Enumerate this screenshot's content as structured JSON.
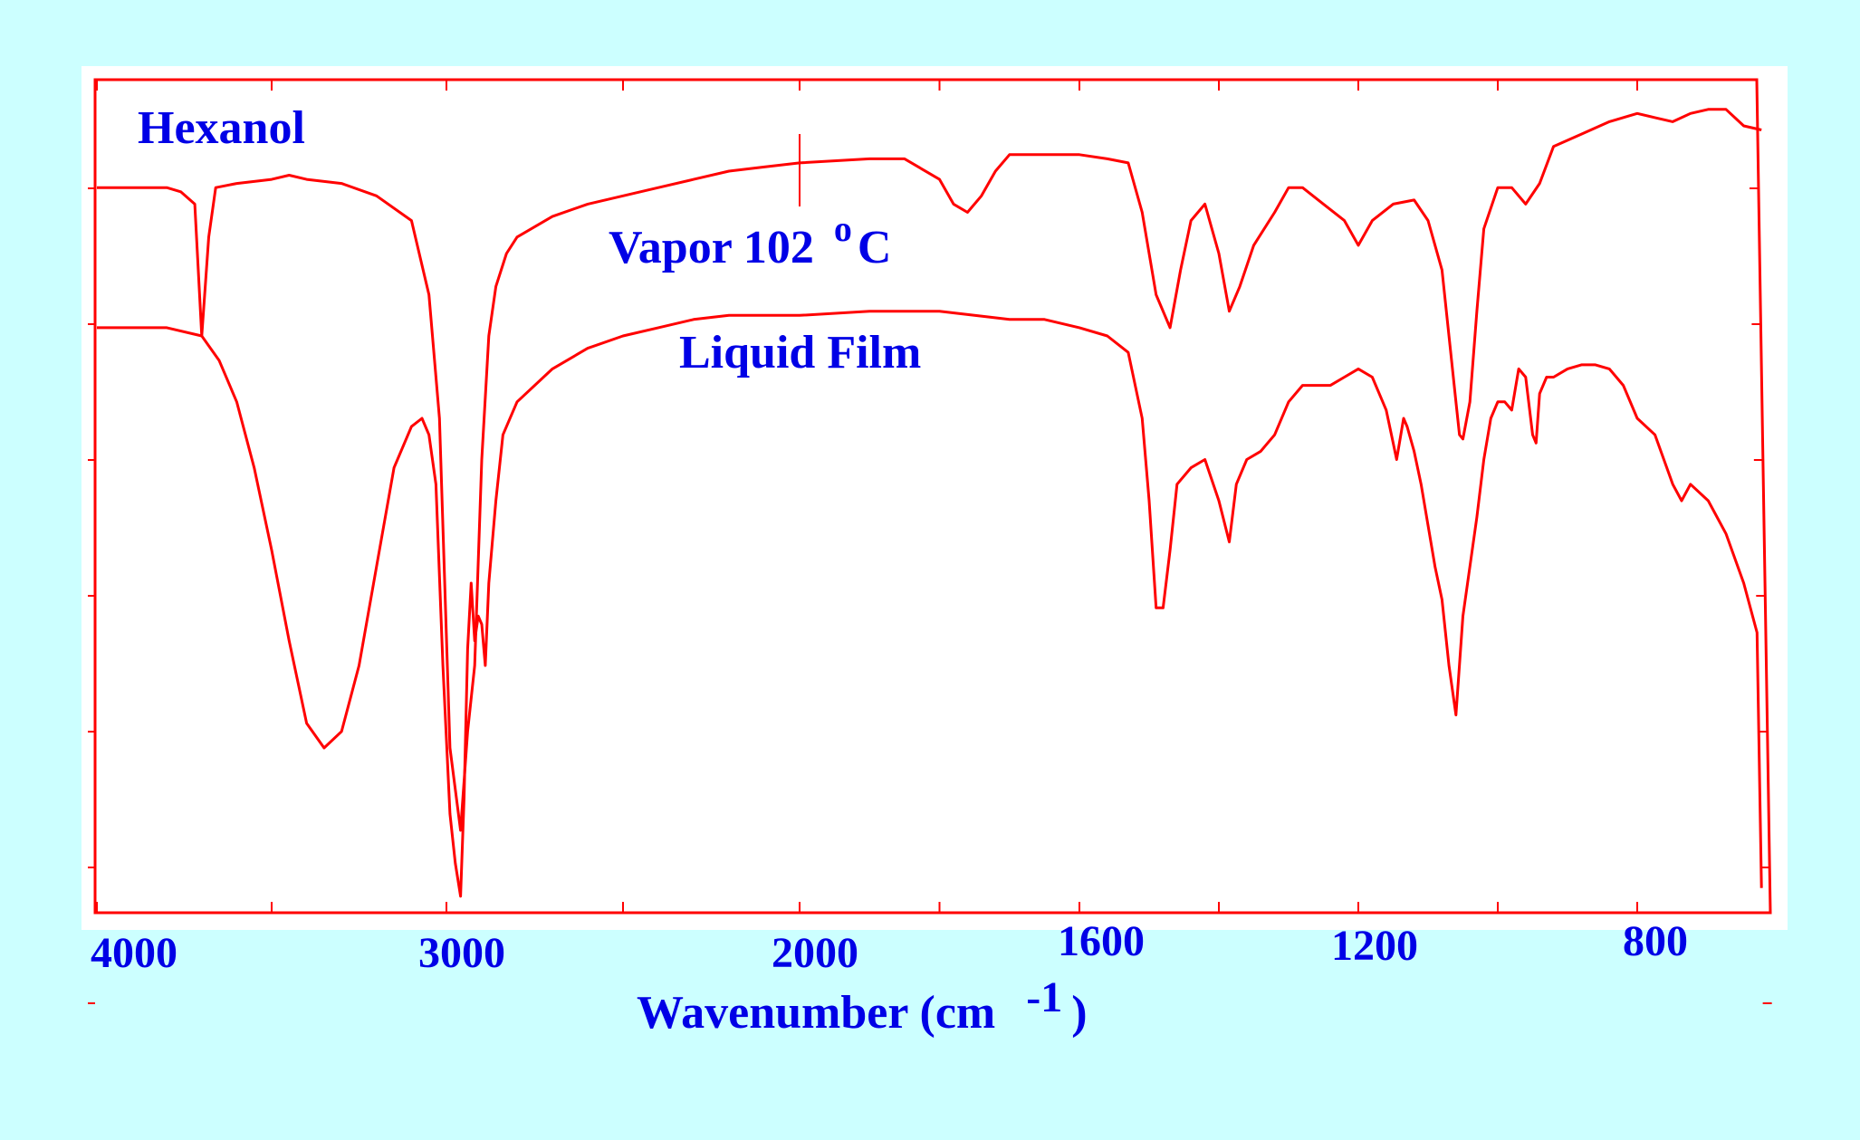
{
  "chart_data": {
    "type": "line",
    "title": "Hexanol",
    "xlabel": "Wavenumber (cm",
    "xlabel_exponent": "-1",
    "xlabel_suffix": ")",
    "xticks": [
      "4000",
      "3000",
      "2000",
      "1600",
      "1200",
      "800"
    ],
    "x_axis_scale": "piecewise: 4000-2000 compressed, 2000-650 expanded",
    "xlim": [
      4000,
      650
    ],
    "ylim": [
      0,
      100
    ],
    "y_meaning": "transmittance (%)",
    "grid": false,
    "legend": "none (inline labels)",
    "colors": {
      "trace": "#ff0000",
      "text": "#0000e6",
      "background": "#ccffff",
      "frame": "#ff0000"
    },
    "series": [
      {
        "name": "Vapor 102",
        "label_degree": "o",
        "label_unit": "C",
        "points": [
          [
            4000,
            88
          ],
          [
            3900,
            88
          ],
          [
            3800,
            88
          ],
          [
            3760,
            87.5
          ],
          [
            3720,
            86
          ],
          [
            3700,
            70
          ],
          [
            3680,
            82
          ],
          [
            3660,
            88
          ],
          [
            3600,
            88.5
          ],
          [
            3500,
            89
          ],
          [
            3450,
            89.5
          ],
          [
            3400,
            89
          ],
          [
            3300,
            88.5
          ],
          [
            3200,
            87
          ],
          [
            3100,
            84
          ],
          [
            3050,
            75
          ],
          [
            3020,
            60
          ],
          [
            2990,
            20
          ],
          [
            2960,
            10
          ],
          [
            2940,
            22
          ],
          [
            2920,
            30
          ],
          [
            2900,
            55
          ],
          [
            2880,
            70
          ],
          [
            2860,
            76
          ],
          [
            2830,
            80
          ],
          [
            2800,
            82
          ],
          [
            2700,
            84.5
          ],
          [
            2600,
            86
          ],
          [
            2500,
            87
          ],
          [
            2400,
            88
          ],
          [
            2300,
            89
          ],
          [
            2200,
            90
          ],
          [
            2100,
            90.5
          ],
          [
            2000,
            91
          ],
          [
            1900,
            91.5
          ],
          [
            1850,
            91.5
          ],
          [
            1800,
            89
          ],
          [
            1780,
            86
          ],
          [
            1760,
            85
          ],
          [
            1740,
            87
          ],
          [
            1720,
            90
          ],
          [
            1700,
            92
          ],
          [
            1650,
            92
          ],
          [
            1620,
            92
          ],
          [
            1600,
            92
          ],
          [
            1560,
            91.5
          ],
          [
            1530,
            91
          ],
          [
            1510,
            85
          ],
          [
            1490,
            75
          ],
          [
            1470,
            71
          ],
          [
            1455,
            78
          ],
          [
            1440,
            84
          ],
          [
            1420,
            86
          ],
          [
            1400,
            80
          ],
          [
            1385,
            73
          ],
          [
            1370,
            76
          ],
          [
            1350,
            81
          ],
          [
            1320,
            85
          ],
          [
            1300,
            88
          ],
          [
            1280,
            88
          ],
          [
            1250,
            86
          ],
          [
            1220,
            84
          ],
          [
            1200,
            81
          ],
          [
            1180,
            84
          ],
          [
            1150,
            86
          ],
          [
            1120,
            86.5
          ],
          [
            1100,
            84
          ],
          [
            1080,
            78
          ],
          [
            1070,
            70
          ],
          [
            1060,
            62
          ],
          [
            1055,
            58
          ],
          [
            1050,
            57.5
          ],
          [
            1040,
            62
          ],
          [
            1030,
            73
          ],
          [
            1020,
            83
          ],
          [
            1000,
            88
          ],
          [
            980,
            88
          ],
          [
            960,
            86
          ],
          [
            940,
            88.5
          ],
          [
            920,
            93
          ],
          [
            880,
            94.5
          ],
          [
            840,
            96
          ],
          [
            800,
            97
          ],
          [
            780,
            96.5
          ],
          [
            760,
            96
          ],
          [
            740,
            97
          ],
          [
            720,
            97.5
          ],
          [
            700,
            97.5
          ],
          [
            680,
            95.5
          ],
          [
            660,
            95
          ]
        ]
      },
      {
        "name": "Liquid Film",
        "points": [
          [
            4000,
            71
          ],
          [
            3900,
            71
          ],
          [
            3800,
            71
          ],
          [
            3700,
            70
          ],
          [
            3650,
            67
          ],
          [
            3600,
            62
          ],
          [
            3550,
            54
          ],
          [
            3500,
            44
          ],
          [
            3450,
            33
          ],
          [
            3400,
            23
          ],
          [
            3350,
            20
          ],
          [
            3300,
            22
          ],
          [
            3250,
            30
          ],
          [
            3200,
            42
          ],
          [
            3150,
            54
          ],
          [
            3100,
            59
          ],
          [
            3070,
            60
          ],
          [
            3050,
            58
          ],
          [
            3030,
            52
          ],
          [
            3010,
            30
          ],
          [
            2990,
            12
          ],
          [
            2975,
            6
          ],
          [
            2960,
            2
          ],
          [
            2950,
            14
          ],
          [
            2940,
            32
          ],
          [
            2930,
            40
          ],
          [
            2920,
            33
          ],
          [
            2910,
            36
          ],
          [
            2900,
            35
          ],
          [
            2890,
            30
          ],
          [
            2880,
            40
          ],
          [
            2870,
            45
          ],
          [
            2860,
            50
          ],
          [
            2840,
            58
          ],
          [
            2800,
            62
          ],
          [
            2700,
            66
          ],
          [
            2600,
            68.5
          ],
          [
            2500,
            70
          ],
          [
            2400,
            71
          ],
          [
            2300,
            72
          ],
          [
            2200,
            72.5
          ],
          [
            2000,
            72.5
          ],
          [
            1900,
            73
          ],
          [
            1800,
            73
          ],
          [
            1700,
            72
          ],
          [
            1650,
            72
          ],
          [
            1600,
            71
          ],
          [
            1560,
            70
          ],
          [
            1530,
            68
          ],
          [
            1510,
            60
          ],
          [
            1500,
            50
          ],
          [
            1490,
            37
          ],
          [
            1480,
            37
          ],
          [
            1470,
            44
          ],
          [
            1460,
            52
          ],
          [
            1440,
            54
          ],
          [
            1420,
            55
          ],
          [
            1400,
            50
          ],
          [
            1385,
            45
          ],
          [
            1375,
            52
          ],
          [
            1360,
            55
          ],
          [
            1340,
            56
          ],
          [
            1320,
            58
          ],
          [
            1300,
            62
          ],
          [
            1280,
            64
          ],
          [
            1260,
            64
          ],
          [
            1240,
            64
          ],
          [
            1220,
            65
          ],
          [
            1200,
            66
          ],
          [
            1180,
            65
          ],
          [
            1160,
            61
          ],
          [
            1150,
            57
          ],
          [
            1145,
            55
          ],
          [
            1135,
            60
          ],
          [
            1130,
            59
          ],
          [
            1120,
            56
          ],
          [
            1110,
            52
          ],
          [
            1100,
            47
          ],
          [
            1090,
            42
          ],
          [
            1080,
            38
          ],
          [
            1070,
            30
          ],
          [
            1060,
            24
          ],
          [
            1050,
            36
          ],
          [
            1040,
            42
          ],
          [
            1030,
            48
          ],
          [
            1020,
            55
          ],
          [
            1010,
            60
          ],
          [
            1000,
            62
          ],
          [
            990,
            62
          ],
          [
            980,
            61
          ],
          [
            970,
            66
          ],
          [
            960,
            65
          ],
          [
            950,
            58
          ],
          [
            945,
            57
          ],
          [
            940,
            63
          ],
          [
            930,
            65
          ],
          [
            920,
            65
          ],
          [
            900,
            66
          ],
          [
            880,
            66.5
          ],
          [
            860,
            66.5
          ],
          [
            840,
            66
          ],
          [
            820,
            64
          ],
          [
            800,
            60
          ],
          [
            780,
            58
          ],
          [
            760,
            52
          ],
          [
            750,
            50
          ],
          [
            740,
            52
          ],
          [
            720,
            50
          ],
          [
            700,
            46
          ],
          [
            680,
            40
          ],
          [
            665,
            34
          ],
          [
            660,
            3
          ]
        ]
      }
    ]
  }
}
